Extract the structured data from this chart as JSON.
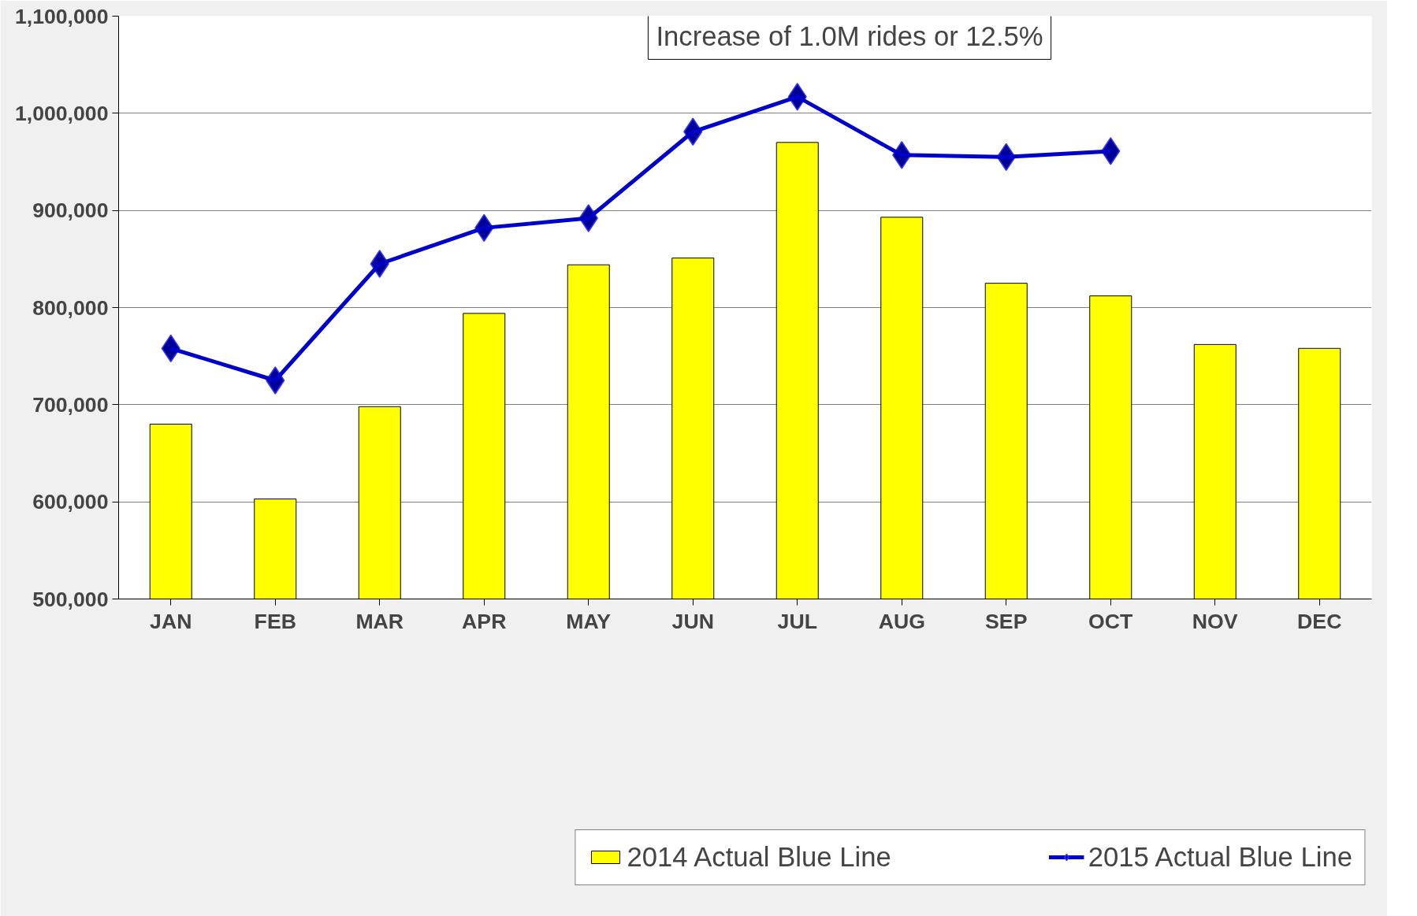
{
  "chart_data": {
    "type": "bar",
    "categories": [
      "JAN",
      "FEB",
      "MAR",
      "APR",
      "MAY",
      "JUN",
      "JUL",
      "AUG",
      "SEP",
      "OCT",
      "NOV",
      "DEC"
    ],
    "series": [
      {
        "name": "2014 Actual Blue Line",
        "color": "#ffff00",
        "values": [
          680000,
          603000,
          698000,
          794000,
          844000,
          851000,
          970000,
          893000,
          825000,
          812000,
          762000,
          758000
        ]
      },
      {
        "name": "2015 Actual Blue Line",
        "type": "line",
        "color": "#0000cc",
        "marker": "diamond",
        "values": [
          758000,
          725000,
          845000,
          882000,
          892000,
          981000,
          1017000,
          957000,
          955000,
          961000,
          null,
          null
        ]
      }
    ],
    "ylim": [
      500000,
      1100000
    ],
    "yticks": [
      {
        "value": 500000,
        "label": "500,000"
      },
      {
        "value": 600000,
        "label": "600,000"
      },
      {
        "value": 700000,
        "label": "700,000"
      },
      {
        "value": 800000,
        "label": "800,000"
      },
      {
        "value": 900000,
        "label": "900,000"
      },
      {
        "value": 1000000,
        "label": "1,000,000"
      },
      {
        "value": 1100000,
        "label": "1,100,000"
      }
    ],
    "annotations": [
      "Increase of 1.0M rides or 12.5%"
    ],
    "grid": "y",
    "legend": "bottom"
  }
}
